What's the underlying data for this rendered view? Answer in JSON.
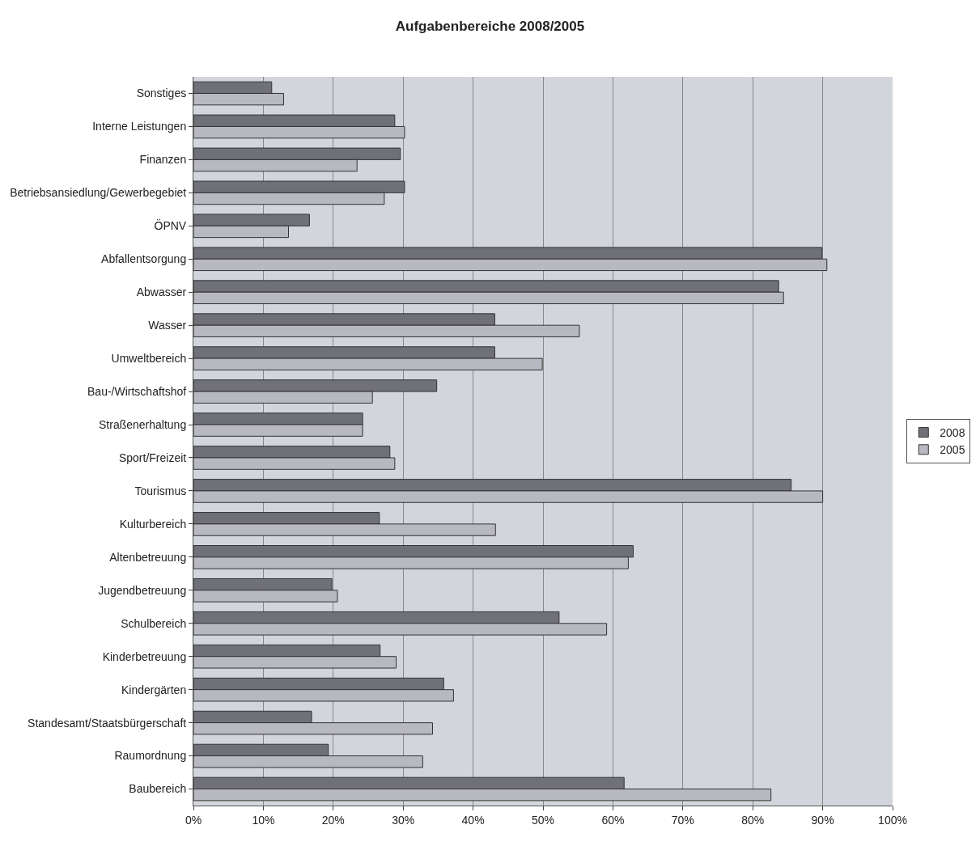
{
  "chart_data": {
    "type": "bar",
    "orientation": "horizontal",
    "title": "Aufgabenbereiche 2008/2005",
    "categories": [
      "Sonstiges",
      "Interne Leistungen",
      "Finanzen",
      "Betriebsansiedlung/Gewerbegebiet",
      "ÖPNV",
      "Abfallentsorgung",
      "Abwasser",
      "Wasser",
      "Umweltbereich",
      "Bau-/Wirtschaftshof",
      "Straßenerhaltung",
      "Sport/Freizeit",
      "Tourismus",
      "Kulturbereich",
      "Altenbetreuung",
      "Jugendbetreuung",
      "Schulbereich",
      "Kinderbetreuung",
      "Kindergärten",
      "Standesamt/Staatsbürgerschaft",
      "Raumordnung",
      "Baubereich"
    ],
    "series": [
      {
        "name": "2008",
        "color": "#707078",
        "values": [
          11.2,
          28.8,
          29.6,
          30.2,
          16.6,
          89.9,
          83.7,
          43.1,
          43.1,
          34.8,
          24.2,
          28.1,
          85.5,
          26.6,
          62.9,
          19.8,
          52.3,
          26.7,
          35.8,
          16.9,
          19.3,
          61.6
        ]
      },
      {
        "name": "2005",
        "color": "#b8b9c0",
        "values": [
          12.9,
          30.2,
          23.4,
          27.3,
          13.6,
          90.6,
          84.4,
          55.2,
          49.9,
          25.6,
          24.2,
          28.8,
          90.0,
          43.2,
          62.2,
          20.6,
          59.1,
          29.0,
          37.2,
          34.2,
          32.8,
          82.6
        ]
      }
    ],
    "xlim": [
      0,
      100
    ],
    "xticks": [
      {
        "value": 0,
        "label": "0%"
      },
      {
        "value": 10,
        "label": "10%"
      },
      {
        "value": 20,
        "label": "20%"
      },
      {
        "value": 30,
        "label": "30%"
      },
      {
        "value": 40,
        "label": "40%"
      },
      {
        "value": 50,
        "label": "50%"
      },
      {
        "value": 60,
        "label": "60%"
      },
      {
        "value": 70,
        "label": "70%"
      },
      {
        "value": 80,
        "label": "80%"
      },
      {
        "value": 90,
        "label": "90%"
      },
      {
        "value": 100,
        "label": "100%"
      }
    ],
    "grid": "x",
    "legend": "right"
  }
}
